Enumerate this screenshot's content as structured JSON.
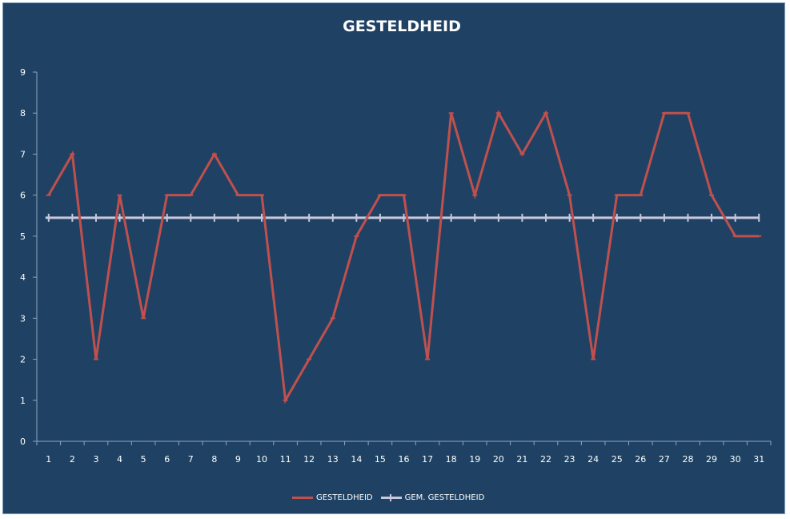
{
  "chart_data": {
    "type": "line",
    "title": "GESTELDHEID",
    "xlabel": "",
    "ylabel": "",
    "ylim": [
      0,
      9
    ],
    "yticks": [
      0,
      1,
      2,
      3,
      4,
      5,
      6,
      7,
      8,
      9
    ],
    "categories": [
      "1",
      "2",
      "3",
      "4",
      "5",
      "6",
      "7",
      "8",
      "9",
      "10",
      "11",
      "12",
      "13",
      "14",
      "15",
      "16",
      "17",
      "18",
      "19",
      "20",
      "21",
      "22",
      "23",
      "24",
      "25",
      "26",
      "27",
      "28",
      "29",
      "30",
      "31"
    ],
    "series": [
      {
        "name": "GESTELDHEID",
        "color": "#c0504d",
        "values": [
          6,
          7,
          2,
          6,
          3,
          6,
          6,
          7,
          6,
          6,
          1,
          2,
          3,
          5,
          6,
          6,
          2,
          8,
          6,
          8,
          7,
          8,
          6,
          2,
          6,
          6,
          8,
          8,
          6,
          5,
          5
        ]
      },
      {
        "name": "GEM. GESTELDHEID",
        "color": "#c8c8dc",
        "values": [
          5.45,
          5.45,
          5.45,
          5.45,
          5.45,
          5.45,
          5.45,
          5.45,
          5.45,
          5.45,
          5.45,
          5.45,
          5.45,
          5.45,
          5.45,
          5.45,
          5.45,
          5.45,
          5.45,
          5.45,
          5.45,
          5.45,
          5.45,
          5.45,
          5.45,
          5.45,
          5.45,
          5.45,
          5.45,
          5.45,
          5.45
        ]
      }
    ],
    "grid": false,
    "legend_position": "bottom",
    "background_color": "#1f4264"
  }
}
